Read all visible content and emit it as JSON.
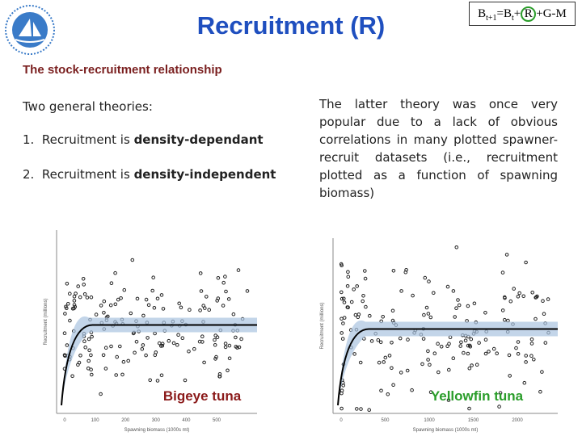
{
  "header": {
    "title": "Recruitment (R)",
    "formula": {
      "base": "B",
      "sub1": "t+1",
      "eq": "=B",
      "sub2": "t",
      "plus1": "+",
      "r": "R",
      "rest": "+G-M"
    }
  },
  "subtitle": "The stock-recruitment relationship",
  "left": {
    "intro": "Two general theories:",
    "items": [
      {
        "num": "1.",
        "text": "Recruitment is ",
        "bold": "density-dependant"
      },
      {
        "num": "2.",
        "text": "Recruitment is ",
        "bold": "density-independent"
      }
    ]
  },
  "right": {
    "paragraph": "The latter theory was once very popular due to a lack of obvious correlations in many plotted spawner-recruit datasets (i.e., recruitment plotted as a function of spawning biomass)"
  },
  "figures": [
    {
      "label": "Bigeye tuna",
      "x_axis": "Spawning biomass (1000s mt)",
      "y_axis": "Recruitment (millions)",
      "x_ticks": [
        "0",
        "100",
        "200",
        "300",
        "400",
        "500"
      ]
    },
    {
      "label": "Yellowfin tuna",
      "x_axis": "Spawning biomass (1000s mt)",
      "y_axis": "Recruitment (millions)",
      "x_ticks": [
        "0",
        "500",
        "1000",
        "1500",
        "2000"
      ]
    }
  ]
}
